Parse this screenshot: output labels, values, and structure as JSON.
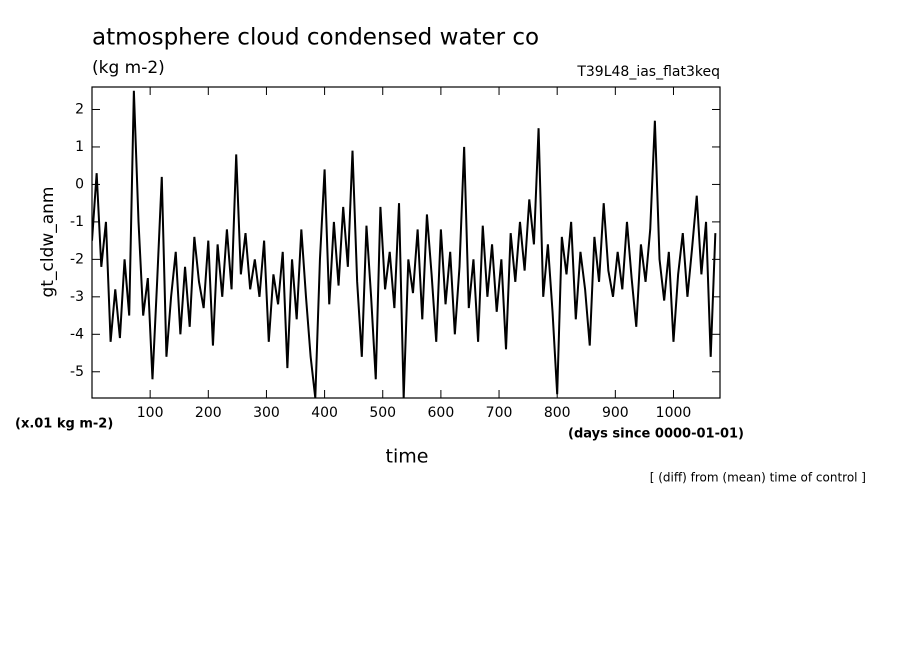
{
  "chart_data": {
    "type": "line",
    "title": "atmosphere cloud condensed water co",
    "subtitle": "(kg m-2)",
    "run_label": "T39L48_ias_flat3keq",
    "y_label": "gt_cldw_anm",
    "y_unit_label": "(x.01 kg m-2)",
    "x_label": "time",
    "x_unit_label": "(days since 0000-01-01)",
    "note": "[ (diff) from (mean) time of control ]",
    "xlim": [
      0,
      1080
    ],
    "xticks": [
      100,
      200,
      300,
      400,
      500,
      600,
      700,
      800,
      900,
      1000
    ],
    "ylim": [
      -5.7,
      2.6
    ],
    "yticks": [
      -5,
      -4,
      -3,
      -2,
      -1,
      0,
      1,
      2
    ],
    "grid": false,
    "x": [
      0,
      8,
      16,
      24,
      32,
      40,
      48,
      56,
      64,
      72,
      80,
      88,
      96,
      104,
      112,
      120,
      128,
      136,
      144,
      152,
      160,
      168,
      176,
      184,
      192,
      200,
      208,
      216,
      224,
      232,
      240,
      248,
      256,
      264,
      272,
      280,
      288,
      296,
      304,
      312,
      320,
      328,
      336,
      344,
      352,
      360,
      368,
      376,
      384,
      392,
      400,
      408,
      416,
      424,
      432,
      440,
      448,
      456,
      464,
      472,
      480,
      488,
      496,
      504,
      512,
      520,
      528,
      536,
      544,
      552,
      560,
      568,
      576,
      584,
      592,
      600,
      608,
      616,
      624,
      632,
      640,
      648,
      656,
      664,
      672,
      680,
      688,
      696,
      704,
      712,
      720,
      728,
      736,
      744,
      752,
      760,
      768,
      776,
      784,
      792,
      800,
      808,
      816,
      824,
      832,
      840,
      848,
      856,
      864,
      872,
      880,
      888,
      896,
      904,
      912,
      920,
      928,
      936,
      944,
      952,
      960,
      968,
      976,
      984,
      992,
      1000,
      1008,
      1016,
      1024,
      1032,
      1040,
      1048,
      1056,
      1064,
      1072
    ],
    "series": [
      {
        "color": "#000000",
        "values": [
          -1.5,
          0.3,
          -2.2,
          -1.0,
          -4.2,
          -2.8,
          -4.1,
          -2.0,
          -3.5,
          2.5,
          -1.0,
          -3.5,
          -2.5,
          -5.2,
          -2.6,
          0.2,
          -4.6,
          -3.0,
          -1.8,
          -4.0,
          -2.2,
          -3.8,
          -1.4,
          -2.6,
          -3.3,
          -1.5,
          -4.3,
          -1.6,
          -3.0,
          -1.2,
          -2.8,
          0.8,
          -2.4,
          -1.3,
          -2.8,
          -2.0,
          -3.0,
          -1.5,
          -4.2,
          -2.4,
          -3.2,
          -1.8,
          -4.9,
          -2.0,
          -3.6,
          -1.2,
          -3.0,
          -4.6,
          -5.7,
          -2.0,
          0.4,
          -3.2,
          -1.0,
          -2.7,
          -0.6,
          -2.2,
          0.9,
          -2.6,
          -4.6,
          -1.1,
          -3.0,
          -5.2,
          -0.6,
          -2.8,
          -1.8,
          -3.3,
          -0.5,
          -5.7,
          -2.0,
          -2.9,
          -1.2,
          -3.6,
          -0.8,
          -2.4,
          -4.2,
          -1.2,
          -3.2,
          -1.8,
          -4.0,
          -2.2,
          1.0,
          -3.3,
          -2.0,
          -4.2,
          -1.1,
          -3.0,
          -1.6,
          -3.4,
          -2.0,
          -4.4,
          -1.3,
          -2.6,
          -1.0,
          -2.3,
          -0.4,
          -1.6,
          1.5,
          -3.0,
          -1.6,
          -3.4,
          -5.6,
          -1.4,
          -2.4,
          -1.0,
          -3.6,
          -1.8,
          -2.8,
          -4.3,
          -1.4,
          -2.6,
          -0.5,
          -2.3,
          -3.0,
          -1.8,
          -2.8,
          -1.0,
          -2.5,
          -3.8,
          -1.6,
          -2.6,
          -1.2,
          1.7,
          -2.0,
          -3.1,
          -1.8,
          -4.2,
          -2.4,
          -1.3,
          -3.0,
          -1.7,
          -0.3,
          -2.4,
          -1.0,
          -4.6,
          -1.3
        ]
      }
    ]
  }
}
